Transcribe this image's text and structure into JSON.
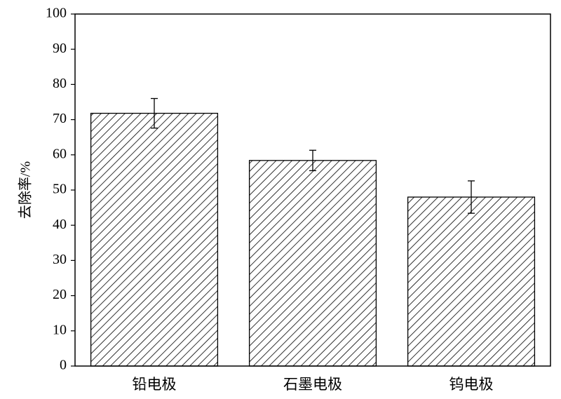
{
  "chart_data": {
    "type": "bar",
    "y_label": "去除率/%",
    "categories": [
      "铅电极",
      "石墨电极",
      "钨电极"
    ],
    "values": [
      71.8,
      58.4,
      48.0
    ],
    "errors": [
      4.2,
      2.9,
      4.6
    ],
    "color": "#000000",
    "ylim": [
      0,
      100
    ],
    "yticks": [
      0,
      10,
      20,
      30,
      40,
      50,
      60,
      70,
      80,
      90,
      100
    ]
  }
}
